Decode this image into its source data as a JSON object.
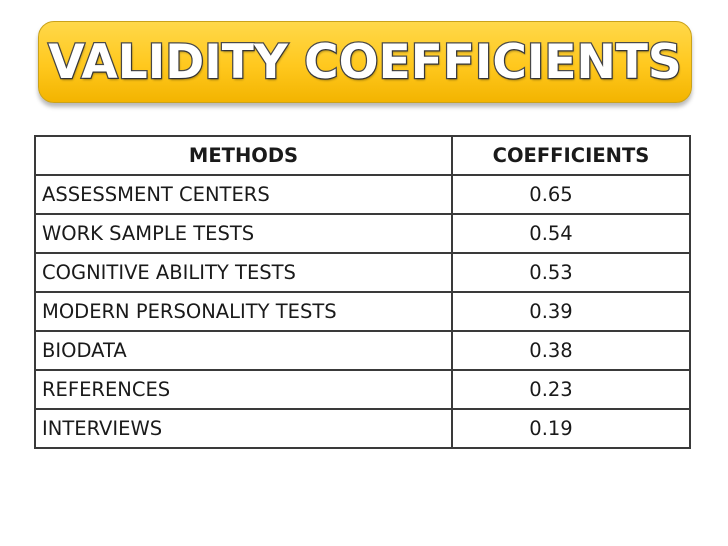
{
  "title": "VALIDITY COEFFICIENTS",
  "table": {
    "headers": {
      "methods": "METHODS",
      "coefficients": "COEFFICIENTS"
    },
    "rows": [
      {
        "method": "ASSESSMENT CENTERS",
        "coefficient": "0.65"
      },
      {
        "method": "WORK SAMPLE TESTS",
        "coefficient": "0.54"
      },
      {
        "method": "COGNITIVE ABILITY TESTS",
        "coefficient": "0.53"
      },
      {
        "method": "MODERN PERSONALITY TESTS",
        "coefficient": "0.39"
      },
      {
        "method": "BIODATA",
        "coefficient": "0.38"
      },
      {
        "method": "REFERENCES",
        "coefficient": "0.23"
      },
      {
        "method": "INTERVIEWS",
        "coefficient": "0.19"
      }
    ]
  },
  "colors": {
    "banner": "#ffc81e",
    "border": "#3a3a3a"
  }
}
